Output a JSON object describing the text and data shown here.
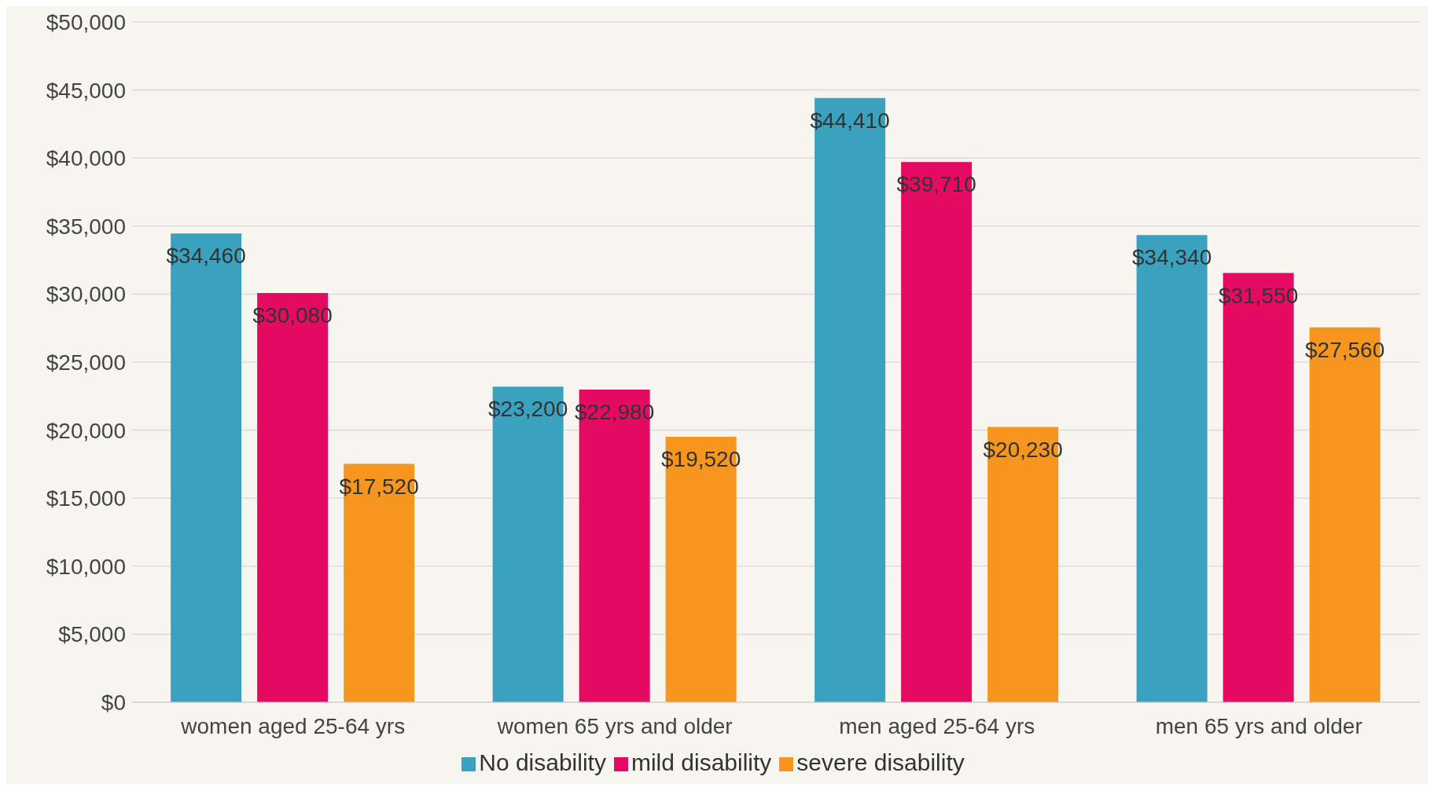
{
  "chart_data": {
    "type": "bar",
    "categories": [
      "women aged 25-64 yrs",
      "women 65 yrs and older",
      "men aged 25-64 yrs",
      "men 65 yrs and older"
    ],
    "series": [
      {
        "name": "No disability",
        "color": "#3aa2bf",
        "values": [
          34460,
          23200,
          44410,
          34340
        ],
        "value_labels": [
          "$34,460",
          "$23,200",
          "$44,410",
          "$34,340"
        ]
      },
      {
        "name": "mild disability",
        "color": "#e60b62",
        "values": [
          30080,
          22980,
          39710,
          31550
        ],
        "value_labels": [
          "$30,080",
          "$22,980",
          "$39,710",
          "$31,550"
        ]
      },
      {
        "name": "severe disability",
        "color": "#f7961f",
        "values": [
          17520,
          19520,
          20230,
          27560
        ],
        "value_labels": [
          "$17,520",
          "$19,520",
          "$20,230",
          "$27,560"
        ]
      }
    ],
    "ylim": [
      0,
      50000
    ],
    "yticks": [
      {
        "value": 0,
        "label": "$0"
      },
      {
        "value": 5000,
        "label": "$5,000"
      },
      {
        "value": 10000,
        "label": "$10,000"
      },
      {
        "value": 15000,
        "label": "$15,000"
      },
      {
        "value": 20000,
        "label": "$20,000"
      },
      {
        "value": 25000,
        "label": "$25,000"
      },
      {
        "value": 30000,
        "label": "$30,000"
      },
      {
        "value": 35000,
        "label": "$35,000"
      },
      {
        "value": 40000,
        "label": "$40,000"
      },
      {
        "value": 45000,
        "label": "$45,000"
      },
      {
        "value": 50000,
        "label": "$50,000"
      }
    ],
    "grid": "y",
    "legend": "bottom"
  }
}
